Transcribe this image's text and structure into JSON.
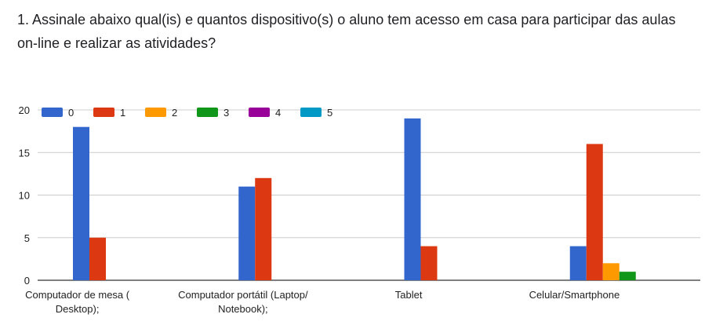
{
  "question": "1. Assinale abaixo qual(is) e quantos dispositivo(s) o aluno tem acesso em casa para participar das aulas on-line e realizar as atividades?",
  "chart_data": {
    "type": "bar",
    "categories": [
      [
        "Computador de mesa (",
        "Desktop);"
      ],
      [
        "Computador portátil (Laptop/",
        "Notebook);"
      ],
      [
        "Tablet"
      ],
      [
        "Celular/Smartphone"
      ]
    ],
    "series": [
      {
        "name": "0",
        "color": "#3366cc",
        "values": [
          18,
          11,
          19,
          4
        ]
      },
      {
        "name": "1",
        "color": "#dc3912",
        "values": [
          5,
          12,
          4,
          16
        ]
      },
      {
        "name": "2",
        "color": "#ff9900",
        "values": [
          0,
          0,
          0,
          2
        ]
      },
      {
        "name": "3",
        "color": "#109618",
        "values": [
          0,
          0,
          0,
          1
        ]
      },
      {
        "name": "4",
        "color": "#990099",
        "values": [
          0,
          0,
          0,
          0
        ]
      },
      {
        "name": "5",
        "color": "#0099c6",
        "values": [
          0,
          0,
          0,
          0
        ]
      }
    ],
    "yticks": [
      0,
      5,
      10,
      15,
      20
    ],
    "ylim": [
      0,
      20
    ],
    "grid": true,
    "legend": "top-left"
  }
}
